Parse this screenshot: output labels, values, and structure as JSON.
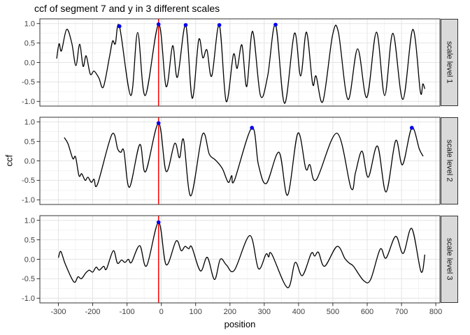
{
  "chart_data": {
    "type": "line",
    "title": "ccf of segment 7 and y in 3 different scales",
    "xlabel": "position",
    "ylabel": "ccf",
    "xlim": [
      -354,
      812
    ],
    "ylim": [
      -1.12,
      1.12
    ],
    "x_ticks": [
      -300,
      -200,
      -100,
      0,
      100,
      200,
      300,
      400,
      500,
      600,
      700,
      800
    ],
    "x_tick_labels": [
      "-300",
      "-200",
      "-100",
      "0",
      "100",
      "200",
      "300",
      "400",
      "500",
      "600",
      "700",
      "800"
    ],
    "y_tick_values": [
      1.0,
      0.5,
      0.0,
      -0.5,
      -1.0
    ],
    "y_tick_labels": [
      "1.0",
      "0.5",
      "0.0",
      "-0.5",
      "-1.0"
    ],
    "y_minor": [
      0.75,
      0.25,
      -0.25,
      -0.75
    ],
    "grid": true,
    "legend": "none",
    "vline": {
      "x": -8,
      "color": "#ff0000"
    },
    "colors": {
      "line": "#000000",
      "point": "#0000ee",
      "grid_major": "#e4e4e4",
      "grid_minor": "#f1f1f1",
      "panel_bg": "#ffffff",
      "panel_border": "#333333",
      "strip_bg": "#d9d9d9",
      "tick_label": "#404040"
    },
    "panels": [
      {
        "label": "scale level 1",
        "series": [
          [
            -305,
            0.1
          ],
          [
            -298,
            0.48
          ],
          [
            -291,
            0.3
          ],
          [
            -276,
            0.85
          ],
          [
            -261,
            0.5
          ],
          [
            -249,
            -0.08
          ],
          [
            -238,
            0.47
          ],
          [
            -228,
            -0.1
          ],
          [
            -219,
            0.17
          ],
          [
            -207,
            -0.3
          ],
          [
            -196,
            -0.22
          ],
          [
            -182,
            -0.4
          ],
          [
            -169,
            -0.63
          ],
          [
            -151,
            0.15
          ],
          [
            -142,
            0.55
          ],
          [
            -134,
            0.48
          ],
          [
            -122,
            0.93
          ],
          [
            -89,
            -0.85
          ],
          [
            -69,
            0.77
          ],
          [
            -47,
            -0.85
          ],
          [
            -8,
            0.98
          ],
          [
            14,
            -0.62
          ],
          [
            33,
            0.43
          ],
          [
            47,
            -0.38
          ],
          [
            71,
            0.96
          ],
          [
            90,
            -0.92
          ],
          [
            109,
            0.58
          ],
          [
            121,
            0.12
          ],
          [
            133,
            0.32
          ],
          [
            147,
            -0.35
          ],
          [
            169,
            0.96
          ],
          [
            189,
            -1.0
          ],
          [
            210,
            0.2
          ],
          [
            221,
            -0.15
          ],
          [
            235,
            0.45
          ],
          [
            249,
            -0.62
          ],
          [
            266,
            0.8
          ],
          [
            289,
            -0.85
          ],
          [
            310,
            -0.35
          ],
          [
            333,
            0.97
          ],
          [
            359,
            -1.05
          ],
          [
            388,
            0.75
          ],
          [
            406,
            -0.35
          ],
          [
            423,
            0.78
          ],
          [
            441,
            -0.55
          ],
          [
            451,
            -0.35
          ],
          [
            471,
            -1.0
          ],
          [
            499,
            0.7
          ],
          [
            516,
            0.78
          ],
          [
            544,
            -0.95
          ],
          [
            572,
            0.35
          ],
          [
            599,
            -0.9
          ],
          [
            627,
            0.78
          ],
          [
            651,
            -0.85
          ],
          [
            675,
            0.75
          ],
          [
            704,
            -0.95
          ],
          [
            733,
            0.85
          ],
          [
            755,
            -0.75
          ],
          [
            762,
            -0.55
          ],
          [
            768,
            -0.68
          ]
        ],
        "peaks": [
          [
            -122,
            0.93
          ],
          [
            -8,
            0.98
          ],
          [
            71,
            0.96
          ],
          [
            169,
            0.96
          ],
          [
            333,
            0.97
          ]
        ]
      },
      {
        "label": "scale level 2",
        "series": [
          [
            -283,
            0.6
          ],
          [
            -272,
            0.44
          ],
          [
            -258,
            0.06
          ],
          [
            -250,
            0.1
          ],
          [
            -240,
            -0.38
          ],
          [
            -232,
            -0.33
          ],
          [
            -222,
            -0.5
          ],
          [
            -214,
            -0.42
          ],
          [
            -204,
            -0.55
          ],
          [
            -196,
            -0.47
          ],
          [
            -186,
            -0.6
          ],
          [
            -144,
            0.68
          ],
          [
            -127,
            0.3
          ],
          [
            -118,
            0.22
          ],
          [
            -109,
            0.25
          ],
          [
            -93,
            -0.68
          ],
          [
            -63,
            0.42
          ],
          [
            -46,
            -0.28
          ],
          [
            -8,
            0.97
          ],
          [
            14,
            -0.27
          ],
          [
            39,
            0.45
          ],
          [
            53,
            0.08
          ],
          [
            65,
            0.54
          ],
          [
            86,
            -0.9
          ],
          [
            120,
            0.68
          ],
          [
            140,
            0.17
          ],
          [
            158,
            0.02
          ],
          [
            178,
            -0.2
          ],
          [
            195,
            -0.55
          ],
          [
            205,
            -0.38
          ],
          [
            213,
            -0.5
          ],
          [
            264,
            0.85
          ],
          [
            283,
            -0.1
          ],
          [
            306,
            -0.58
          ],
          [
            343,
            0.22
          ],
          [
            368,
            -0.88
          ],
          [
            398,
            0.71
          ],
          [
            421,
            -0.2
          ],
          [
            433,
            -0.1
          ],
          [
            452,
            -0.48
          ],
          [
            512,
            0.71
          ],
          [
            553,
            -0.7
          ],
          [
            566,
            -0.3
          ],
          [
            585,
            0.25
          ],
          [
            603,
            -0.42
          ],
          [
            630,
            0.38
          ],
          [
            655,
            -0.8
          ],
          [
            683,
            0.52
          ],
          [
            703,
            -0.1
          ],
          [
            730,
            0.85
          ],
          [
            752,
            0.3
          ],
          [
            763,
            0.12
          ]
        ],
        "peaks": [
          [
            -8,
            0.97
          ],
          [
            264,
            0.85
          ],
          [
            730,
            0.85
          ]
        ]
      },
      {
        "label": "scale level 3",
        "series": [
          [
            -300,
            0.04
          ],
          [
            -293,
            0.2
          ],
          [
            -280,
            -0.12
          ],
          [
            -255,
            -0.58
          ],
          [
            -243,
            -0.45
          ],
          [
            -233,
            -0.5
          ],
          [
            -220,
            -0.35
          ],
          [
            -210,
            -0.28
          ],
          [
            -200,
            -0.33
          ],
          [
            -190,
            -0.2
          ],
          [
            -181,
            -0.28
          ],
          [
            -168,
            -0.18
          ],
          [
            -160,
            -0.25
          ],
          [
            -140,
            0.22
          ],
          [
            -128,
            -0.1
          ],
          [
            -116,
            -0.02
          ],
          [
            -106,
            -0.08
          ],
          [
            -96,
            0.0
          ],
          [
            -87,
            -0.08
          ],
          [
            -63,
            0.35
          ],
          [
            -43,
            -0.17
          ],
          [
            -8,
            0.95
          ],
          [
            14,
            -0.14
          ],
          [
            43,
            0.47
          ],
          [
            58,
            0.22
          ],
          [
            69,
            0.33
          ],
          [
            80,
            0.27
          ],
          [
            89,
            0.31
          ],
          [
            114,
            -0.3
          ],
          [
            134,
            0.05
          ],
          [
            155,
            -0.52
          ],
          [
            172,
            0.0
          ],
          [
            190,
            -0.15
          ],
          [
            213,
            -0.28
          ],
          [
            258,
            0.61
          ],
          [
            283,
            -0.24
          ],
          [
            305,
            0.13
          ],
          [
            313,
            0.06
          ],
          [
            322,
            0.13
          ],
          [
            368,
            -0.73
          ],
          [
            390,
            -0.08
          ],
          [
            411,
            -0.42
          ],
          [
            437,
            0.15
          ],
          [
            447,
            0.08
          ],
          [
            458,
            0.18
          ],
          [
            476,
            -0.18
          ],
          [
            512,
            0.33
          ],
          [
            535,
            0.02
          ],
          [
            548,
            -0.1
          ],
          [
            560,
            -0.18
          ],
          [
            590,
            -0.55
          ],
          [
            610,
            -0.52
          ],
          [
            638,
            0.26
          ],
          [
            655,
            0.03
          ],
          [
            683,
            0.59
          ],
          [
            705,
            0.15
          ],
          [
            730,
            0.79
          ],
          [
            757,
            -0.32
          ],
          [
            768,
            0.12
          ]
        ],
        "peaks": [
          [
            -8,
            0.95
          ]
        ]
      }
    ]
  }
}
